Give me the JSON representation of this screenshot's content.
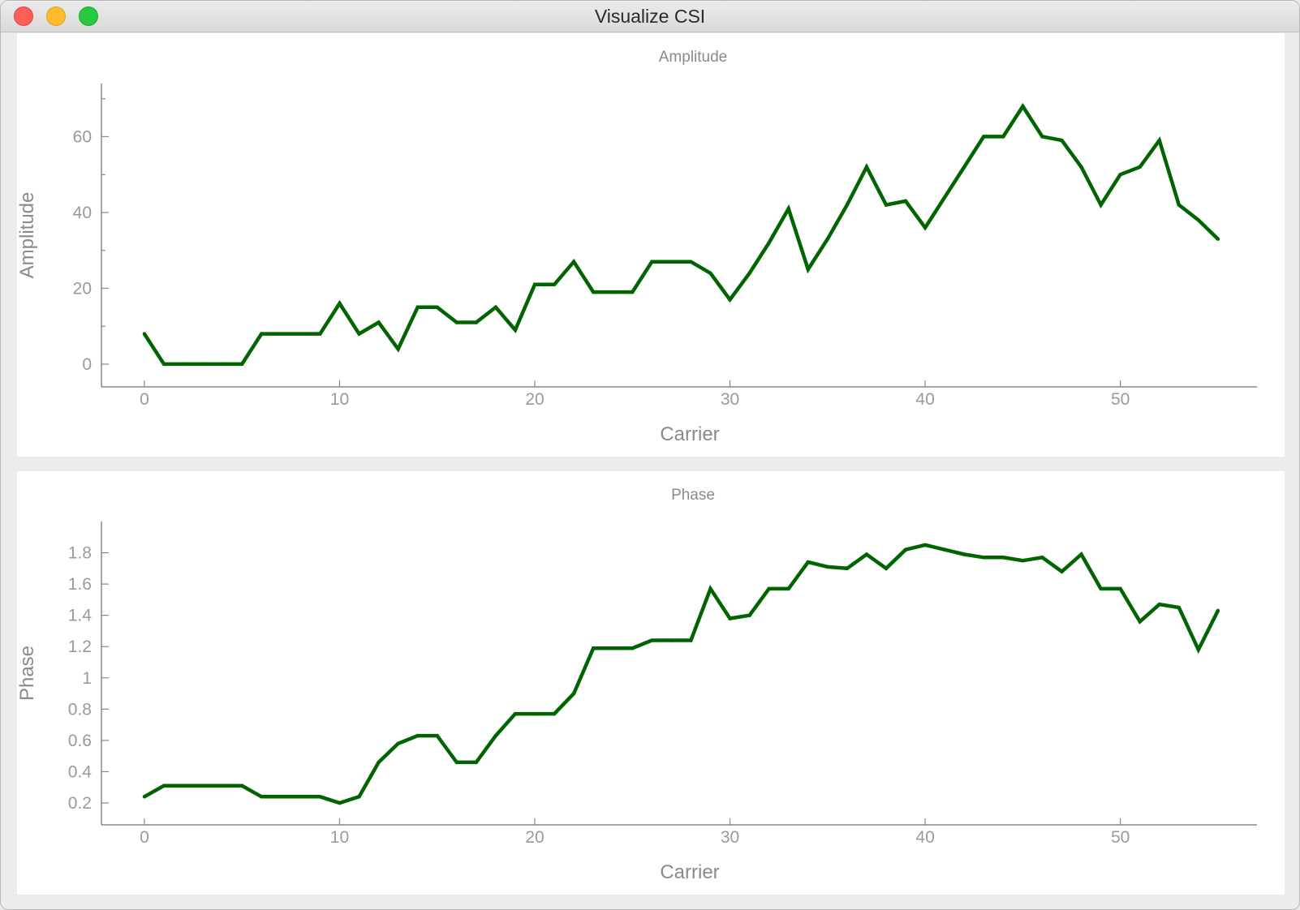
{
  "window": {
    "title": "Visualize CSI"
  },
  "chart_data": [
    {
      "type": "line",
      "title": "Amplitude",
      "xlabel": "Carrier",
      "ylabel": "Amplitude",
      "xlim": [
        -2.2,
        57
      ],
      "ylim": [
        -6,
        74
      ],
      "xticks": [
        0,
        10,
        20,
        30,
        40,
        50
      ],
      "yticks": [
        0,
        20,
        40,
        60
      ],
      "yticks_minor": [
        10,
        30,
        50,
        70
      ],
      "grid": false,
      "legend": "none",
      "color": "#006400",
      "x": [
        0,
        1,
        2,
        3,
        4,
        5,
        6,
        7,
        8,
        9,
        10,
        11,
        12,
        13,
        14,
        15,
        16,
        17,
        18,
        19,
        20,
        21,
        22,
        23,
        24,
        25,
        26,
        27,
        28,
        29,
        30,
        31,
        32,
        33,
        34,
        35,
        36,
        37,
        38,
        39,
        40,
        41,
        42,
        43,
        44,
        45,
        46,
        47,
        48,
        49,
        50,
        51,
        52,
        53,
        54,
        55
      ],
      "values": [
        8,
        0,
        0,
        0,
        0,
        0,
        8,
        8,
        8,
        8,
        16,
        8,
        11,
        4,
        15,
        15,
        11,
        11,
        15,
        9,
        21,
        21,
        27,
        19,
        19,
        19,
        27,
        27,
        27,
        24,
        17,
        24,
        32,
        41,
        25,
        33,
        42,
        52,
        42,
        43,
        36,
        44,
        52,
        60,
        60,
        68,
        60,
        59,
        52,
        42,
        50,
        52,
        59,
        42,
        38,
        33
      ]
    },
    {
      "type": "line",
      "title": "Phase",
      "xlabel": "Carrier",
      "ylabel": "Phase",
      "xlim": [
        -2.2,
        57
      ],
      "ylim": [
        0.06,
        2.0
      ],
      "xticks": [
        0,
        10,
        20,
        30,
        40,
        50
      ],
      "yticks": [
        0.2,
        0.4,
        0.6,
        0.8,
        1,
        1.2,
        1.4,
        1.6,
        1.8
      ],
      "yticks_minor": [],
      "grid": false,
      "legend": "none",
      "color": "#006400",
      "x": [
        0,
        1,
        2,
        3,
        4,
        5,
        6,
        7,
        8,
        9,
        10,
        11,
        12,
        13,
        14,
        15,
        16,
        17,
        18,
        19,
        20,
        21,
        22,
        23,
        24,
        25,
        26,
        27,
        28,
        29,
        30,
        31,
        32,
        33,
        34,
        35,
        36,
        37,
        38,
        39,
        40,
        41,
        42,
        43,
        44,
        45,
        46,
        47,
        48,
        49,
        50,
        51,
        52,
        53,
        54,
        55
      ],
      "values": [
        0.24,
        0.31,
        0.31,
        0.31,
        0.31,
        0.31,
        0.24,
        0.24,
        0.24,
        0.24,
        0.2,
        0.24,
        0.46,
        0.58,
        0.63,
        0.63,
        0.46,
        0.46,
        0.63,
        0.77,
        0.77,
        0.77,
        0.9,
        1.19,
        1.19,
        1.19,
        1.24,
        1.24,
        1.24,
        1.57,
        1.38,
        1.4,
        1.57,
        1.57,
        1.74,
        1.71,
        1.7,
        1.79,
        1.7,
        1.82,
        1.85,
        1.82,
        1.79,
        1.77,
        1.77,
        1.75,
        1.77,
        1.68,
        1.79,
        1.57,
        1.57,
        1.36,
        1.47,
        1.45,
        1.18,
        1.43
      ]
    }
  ]
}
